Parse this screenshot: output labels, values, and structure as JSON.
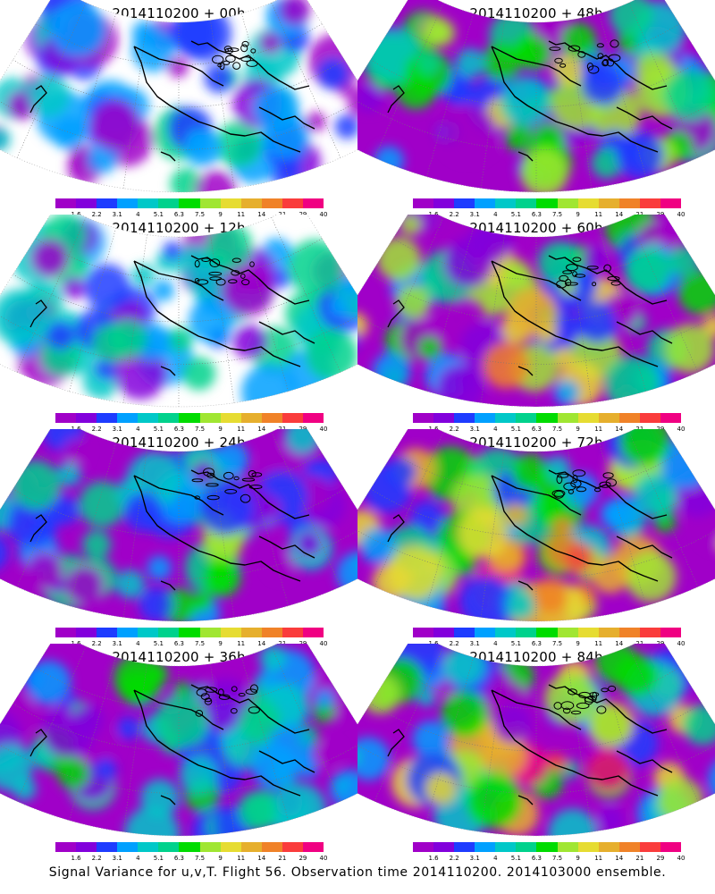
{
  "panels": [
    {
      "title": "2014110200 + 00h",
      "intensity": 0.25,
      "hotspot": 0.5
    },
    {
      "title": "2014110200 + 48h",
      "intensity": 0.55,
      "hotspot": 0.3
    },
    {
      "title": "2014110200 + 12h",
      "intensity": 0.35,
      "hotspot": 0.35
    },
    {
      "title": "2014110200 + 60h",
      "intensity": 0.65,
      "hotspot": 0.55
    },
    {
      "title": "2014110200 + 24h",
      "intensity": 0.4,
      "hotspot": 0.4
    },
    {
      "title": "2014110200 + 72h",
      "intensity": 0.75,
      "hotspot": 0.85
    },
    {
      "title": "2014110200 + 36h",
      "intensity": 0.45,
      "hotspot": 0.45
    },
    {
      "title": "2014110200 + 84h",
      "intensity": 0.8,
      "hotspot": 1.0
    }
  ],
  "colorbar": {
    "colors": [
      "#a000c8",
      "#8200dc",
      "#1e3cff",
      "#00a0ff",
      "#00c8c8",
      "#00d28c",
      "#00dc00",
      "#a0e632",
      "#e6dc32",
      "#e6af2d",
      "#f08228",
      "#fa3c3c",
      "#f00082"
    ],
    "labels": [
      "1.6",
      "2.2",
      "3.1",
      "4",
      "5.1",
      "6.3",
      "7.5",
      "9",
      "11",
      "14",
      "21",
      "29",
      "40"
    ]
  },
  "footer": "Signal Variance for u,v,T. Flight 56. Observation time 2014110200. 2014103000 ensemble."
}
